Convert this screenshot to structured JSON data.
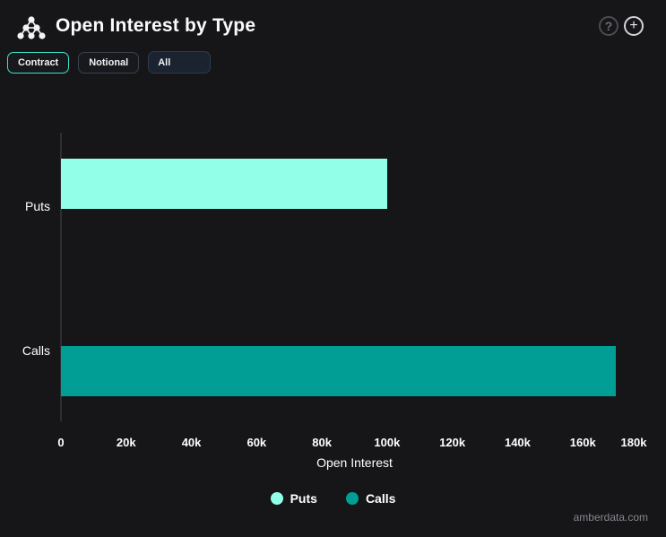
{
  "header": {
    "title": "Open Interest by Type",
    "help_glyph": "?",
    "add_glyph": "+"
  },
  "toolbar": {
    "contract_label": "Contract",
    "notional_label": "Notional",
    "filter_value": "All"
  },
  "chart_data": {
    "type": "bar",
    "orientation": "horizontal",
    "title": "Open Interest by Type",
    "categories": [
      "Puts",
      "Calls"
    ],
    "series": [
      {
        "name": "Puts",
        "color": "#92FFE9",
        "values": [
          100000,
          null
        ]
      },
      {
        "name": "Calls",
        "color": "#009E95",
        "values": [
          null,
          170000
        ]
      }
    ],
    "xlabel": "Open Interest",
    "xlim": [
      0,
      180000
    ],
    "xtick_values": [
      0,
      20000,
      40000,
      60000,
      80000,
      100000,
      120000,
      140000,
      160000,
      180000
    ],
    "xtick_labels": [
      "0",
      "20k",
      "40k",
      "60k",
      "80k",
      "100k",
      "120k",
      "140k",
      "160k",
      "180k"
    ],
    "grid": false,
    "legend_position": "bottom"
  },
  "footer": {
    "watermark": "amberdata.com"
  }
}
